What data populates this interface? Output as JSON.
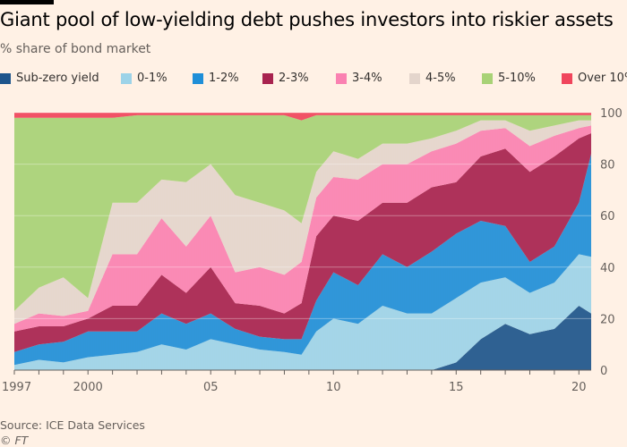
{
  "chart_data": {
    "type": "area",
    "title": "Giant pool of low-yielding debt pushes investors into riskier assets",
    "subtitle": "% share of bond market",
    "source": "Source: ICE Data Services",
    "copyright": "© FT",
    "x_tick_labels": [
      "1997",
      "2000",
      "05",
      "10",
      "15",
      "20"
    ],
    "x_tick_years": [
      1997,
      2000,
      2005,
      2010,
      2015,
      2020
    ],
    "y_tick_labels": [
      "0",
      "20",
      "40",
      "60",
      "80",
      "100"
    ],
    "xlim": [
      1997,
      2020.5
    ],
    "ylim": [
      0,
      100
    ],
    "stacked": true,
    "legend_position": "top",
    "x": [
      1997,
      1998,
      1999,
      2000,
      2001,
      2002,
      2003,
      2004,
      2005,
      2006,
      2007,
      2008,
      2008.7,
      2009.3,
      2010,
      2011,
      2012,
      2013,
      2014,
      2015,
      2016,
      2017,
      2018,
      2019,
      2020,
      2020.5
    ],
    "series": [
      {
        "name": "Sub-zero yield",
        "color": "#1e558c",
        "values": [
          0,
          0,
          0,
          0,
          0,
          0,
          0,
          0,
          0,
          0,
          0,
          0,
          0,
          0,
          0,
          0,
          0,
          0,
          0,
          3,
          12,
          18,
          14,
          16,
          25,
          22
        ]
      },
      {
        "name": "0-1%",
        "color": "#9dd3e8",
        "values": [
          2,
          4,
          3,
          5,
          6,
          7,
          10,
          8,
          12,
          10,
          8,
          7,
          6,
          15,
          20,
          18,
          25,
          22,
          22,
          25,
          22,
          18,
          16,
          18,
          20,
          22
        ]
      },
      {
        "name": "1-2%",
        "color": "#1f8fd8",
        "values": [
          5,
          6,
          8,
          10,
          9,
          8,
          12,
          10,
          10,
          6,
          5,
          5,
          6,
          12,
          18,
          15,
          20,
          18,
          24,
          25,
          24,
          20,
          12,
          14,
          20,
          40
        ]
      },
      {
        "name": "2-3%",
        "color": "#a8234f",
        "values": [
          8,
          7,
          6,
          5,
          10,
          10,
          15,
          12,
          18,
          10,
          12,
          10,
          14,
          25,
          22,
          25,
          20,
          25,
          25,
          20,
          25,
          30,
          35,
          35,
          25,
          8
        ]
      },
      {
        "name": "3-4%",
        "color": "#fa81b1",
        "values": [
          3,
          5,
          4,
          3,
          20,
          20,
          22,
          18,
          20,
          12,
          15,
          15,
          16,
          15,
          15,
          16,
          15,
          15,
          14,
          15,
          10,
          8,
          10,
          8,
          4,
          3
        ]
      },
      {
        "name": "4-5%",
        "color": "#e4d5cc",
        "values": [
          5,
          10,
          15,
          5,
          20,
          20,
          15,
          25,
          20,
          30,
          25,
          25,
          15,
          10,
          10,
          8,
          8,
          8,
          5,
          5,
          4,
          3,
          6,
          4,
          3,
          2
        ]
      },
      {
        "name": "5-10%",
        "color": "#a8d276",
        "values": [
          75,
          66,
          62,
          70,
          33,
          34,
          25,
          26,
          19,
          31,
          34,
          37,
          40,
          22,
          14,
          17,
          11,
          11,
          9,
          6,
          2,
          2,
          6,
          4,
          2,
          2
        ]
      },
      {
        "name": "Over 10%",
        "color": "#f0455c",
        "values": [
          2,
          2,
          2,
          2,
          2,
          1,
          1,
          1,
          1,
          1,
          1,
          1,
          3,
          1,
          1,
          1,
          1,
          1,
          1,
          1,
          1,
          1,
          1,
          1,
          1,
          1
        ]
      }
    ]
  }
}
